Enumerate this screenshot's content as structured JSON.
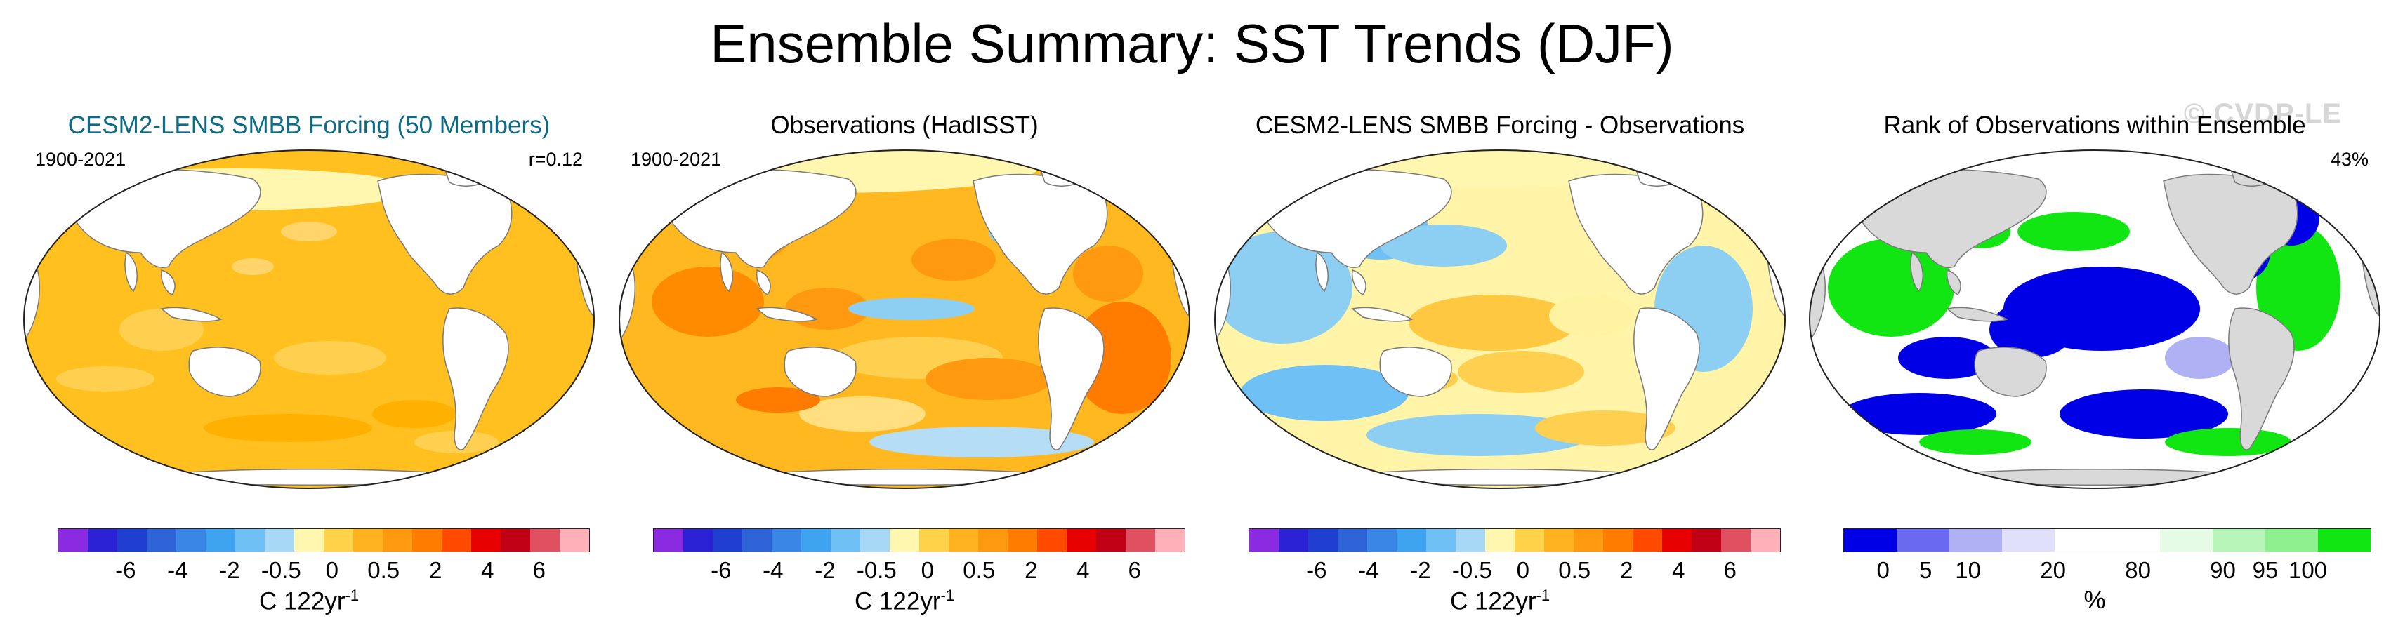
{
  "title": "Ensemble Summary: SST Trends (DJF)",
  "watermark": "© CVDP-LE",
  "colors": {
    "title_teal": "#0d6b87",
    "land": "#ffffff",
    "rank_land": "#d9d9d9"
  },
  "panels": [
    {
      "title": "CESM2-LENS SMBB Forcing (50 Members)",
      "left_label": "1900-2021",
      "right_label": "r=0.12",
      "units": "C 122yr",
      "units_sup": "-1",
      "colorbar": [
        "#8a2be2",
        "#2a22d4",
        "#1e3fcf",
        "#2d63d6",
        "#3a86e6",
        "#3ea4f0",
        "#6ec0f5",
        "#a7d8f5",
        "#fff7b0",
        "#ffd24a",
        "#ffb320",
        "#ff9a10",
        "#ff7c00",
        "#ff4a00",
        "#e60000",
        "#c00014",
        "#e05060",
        "#ffb0b8"
      ],
      "ticks": [
        "-6",
        "-4",
        "-2",
        "-0.5",
        "0",
        "0.5",
        "2",
        "4",
        "6"
      ],
      "map_style": "warm_uniform"
    },
    {
      "title": "Observations (HadISST)",
      "left_label": "1900-2021",
      "right_label": "",
      "units": "C 122yr",
      "units_sup": "-1",
      "colorbar": [
        "#8a2be2",
        "#2a22d4",
        "#1e3fcf",
        "#2d63d6",
        "#3a86e6",
        "#3ea4f0",
        "#6ec0f5",
        "#a7d8f5",
        "#fff7b0",
        "#ffd24a",
        "#ffb320",
        "#ff9a10",
        "#ff7c00",
        "#ff4a00",
        "#e60000",
        "#c00014",
        "#e05060",
        "#ffb0b8"
      ],
      "ticks": [
        "-6",
        "-4",
        "-2",
        "-0.5",
        "0",
        "0.5",
        "2",
        "4",
        "6"
      ],
      "map_style": "warm_mixed"
    },
    {
      "title": "CESM2-LENS SMBB Forcing - Observations",
      "left_label": "",
      "right_label": "",
      "units": "C 122yr",
      "units_sup": "-1",
      "colorbar": [
        "#8a2be2",
        "#2a22d4",
        "#1e3fcf",
        "#2d63d6",
        "#3a86e6",
        "#3ea4f0",
        "#6ec0f5",
        "#a7d8f5",
        "#fff7b0",
        "#ffd24a",
        "#ffb320",
        "#ff9a10",
        "#ff7c00",
        "#ff4a00",
        "#e60000",
        "#c00014",
        "#e05060",
        "#ffb0b8"
      ],
      "ticks": [
        "-6",
        "-4",
        "-2",
        "-0.5",
        "0",
        "0.5",
        "2",
        "4",
        "6"
      ],
      "map_style": "diff"
    },
    {
      "title": "Rank of Observations within Ensemble",
      "left_label": "",
      "right_label": "43%",
      "units": "%",
      "units_sup": "",
      "colorbar": [
        "#0000e6",
        "#6a6af0",
        "#b0b0f5",
        "#e0e0fb",
        "#ffffff",
        "#ffffff",
        "#e6fbe6",
        "#b8f5b8",
        "#8ef08e",
        "#12e612"
      ],
      "ticks": [
        "0",
        "5",
        "10",
        "20",
        "80",
        "90",
        "95",
        "100"
      ],
      "map_style": "rank"
    }
  ]
}
